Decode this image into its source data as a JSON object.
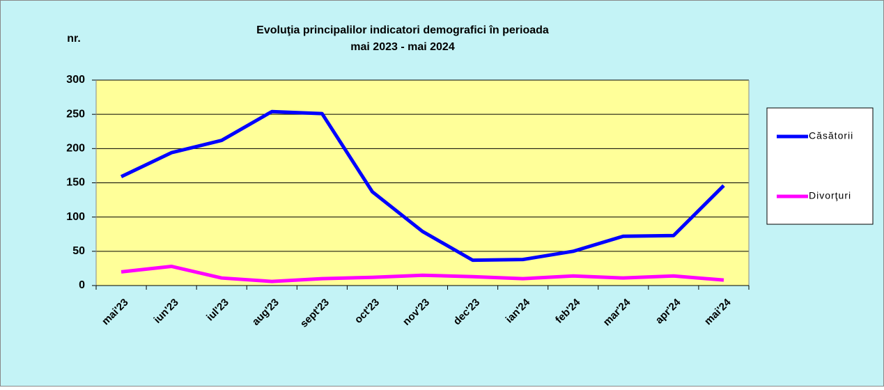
{
  "chart_data": {
    "type": "line",
    "title": "Evoluţia principalilor  indicatori demografici în perioada",
    "subtitle": "mai 2023 - mai 2024",
    "y_label": "nr.",
    "categories": [
      "mai'23",
      "iun'23",
      "iul'23",
      "aug'23",
      "sept'23",
      "oct'23",
      "nov'23",
      "dec'23",
      "ian'24",
      "feb'24",
      "mar'24",
      "apr'24",
      "mai'24"
    ],
    "series": [
      {
        "name": "Căsătorii",
        "color": "#0000ff",
        "values": [
          159,
          194,
          212,
          254,
          251,
          137,
          79,
          37,
          38,
          50,
          72,
          73,
          146
        ]
      },
      {
        "name": "Divorţuri",
        "color": "#ff00ff",
        "values": [
          20,
          28,
          11,
          6,
          10,
          12,
          15,
          13,
          10,
          14,
          11,
          14,
          8
        ]
      }
    ],
    "ylim": [
      0,
      300
    ],
    "yticks": [
      0,
      50,
      100,
      150,
      200,
      250,
      300
    ],
    "grid": true,
    "legend": "right"
  }
}
